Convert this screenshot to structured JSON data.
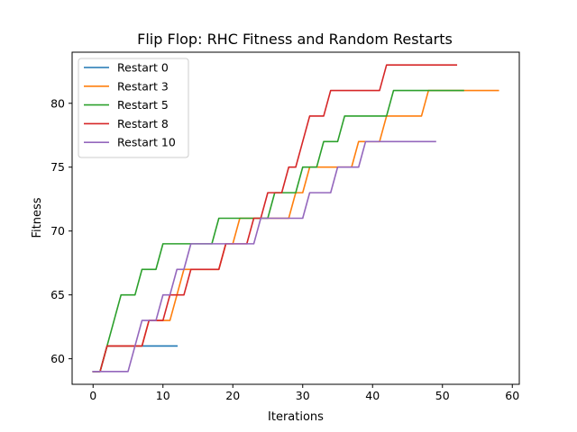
{
  "chart_data": {
    "type": "line",
    "title": "Flip Flop: RHC Fitness and Random Restarts",
    "xlabel": "Iterations",
    "ylabel": "Fitness",
    "xlim": [
      -3,
      61
    ],
    "ylim": [
      58,
      84
    ],
    "xticks": [
      0,
      10,
      20,
      30,
      40,
      50,
      60
    ],
    "yticks": [
      60,
      65,
      70,
      75,
      80
    ],
    "grid": false,
    "legend_position": "top-left",
    "series": [
      {
        "name": "Restart 0",
        "color": "#1f77b4",
        "x": [
          0,
          1,
          2,
          3,
          4,
          5,
          6,
          7,
          8,
          9,
          10,
          11,
          12
        ],
        "y": [
          59,
          59,
          61,
          61,
          61,
          61,
          61,
          61,
          61,
          61,
          61,
          61,
          61
        ]
      },
      {
        "name": "Restart 3",
        "color": "#ff7f0e",
        "x": [
          0,
          1,
          2,
          3,
          4,
          5,
          6,
          7,
          8,
          9,
          10,
          11,
          12,
          13,
          14,
          15,
          16,
          17,
          18,
          19,
          20,
          21,
          22,
          23,
          24,
          25,
          26,
          27,
          28,
          29,
          30,
          31,
          32,
          33,
          34,
          35,
          36,
          37,
          38,
          39,
          40,
          41,
          42,
          43,
          44,
          45,
          46,
          47,
          48,
          49,
          50,
          51,
          52,
          53,
          54,
          55,
          56,
          57,
          58
        ],
        "y": [
          59,
          59,
          61,
          61,
          61,
          61,
          61,
          61,
          63,
          63,
          63,
          63,
          65,
          67,
          67,
          67,
          67,
          67,
          67,
          69,
          69,
          71,
          71,
          71,
          71,
          71,
          71,
          71,
          71,
          73,
          73,
          75,
          75,
          75,
          75,
          75,
          75,
          75,
          77,
          77,
          77,
          77,
          79,
          79,
          79,
          79,
          79,
          79,
          81,
          81,
          81,
          81,
          81,
          81,
          81,
          81,
          81,
          81,
          81
        ]
      },
      {
        "name": "Restart 5",
        "color": "#2ca02c",
        "x": [
          0,
          1,
          2,
          3,
          4,
          5,
          6,
          7,
          8,
          9,
          10,
          11,
          12,
          13,
          14,
          15,
          16,
          17,
          18,
          19,
          20,
          21,
          22,
          23,
          24,
          25,
          26,
          27,
          28,
          29,
          30,
          31,
          32,
          33,
          34,
          35,
          36,
          37,
          38,
          39,
          40,
          41,
          42,
          43,
          44,
          45,
          46,
          47,
          48,
          49,
          50,
          51,
          52,
          53
        ],
        "y": [
          59,
          59,
          61,
          63,
          65,
          65,
          65,
          67,
          67,
          67,
          69,
          69,
          69,
          69,
          69,
          69,
          69,
          69,
          71,
          71,
          71,
          71,
          71,
          71,
          71,
          71,
          73,
          73,
          73,
          73,
          75,
          75,
          75,
          77,
          77,
          77,
          79,
          79,
          79,
          79,
          79,
          79,
          79,
          81,
          81,
          81,
          81,
          81,
          81,
          81,
          81,
          81,
          81,
          81
        ]
      },
      {
        "name": "Restart 8",
        "color": "#d62728",
        "x": [
          0,
          1,
          2,
          3,
          4,
          5,
          6,
          7,
          8,
          9,
          10,
          11,
          12,
          13,
          14,
          15,
          16,
          17,
          18,
          19,
          20,
          21,
          22,
          23,
          24,
          25,
          26,
          27,
          28,
          29,
          30,
          31,
          32,
          33,
          34,
          35,
          36,
          37,
          38,
          39,
          40,
          41,
          42,
          43,
          44,
          45,
          46,
          47,
          48,
          49,
          50,
          51,
          52
        ],
        "y": [
          59,
          59,
          61,
          61,
          61,
          61,
          61,
          61,
          63,
          63,
          63,
          65,
          65,
          65,
          67,
          67,
          67,
          67,
          67,
          69,
          69,
          69,
          69,
          71,
          71,
          73,
          73,
          73,
          75,
          75,
          77,
          79,
          79,
          79,
          81,
          81,
          81,
          81,
          81,
          81,
          81,
          81,
          83,
          83,
          83,
          83,
          83,
          83,
          83,
          83,
          83,
          83,
          83
        ]
      },
      {
        "name": "Restart 10",
        "color": "#9467bd",
        "x": [
          0,
          1,
          2,
          3,
          4,
          5,
          6,
          7,
          8,
          9,
          10,
          11,
          12,
          13,
          14,
          15,
          16,
          17,
          18,
          19,
          20,
          21,
          22,
          23,
          24,
          25,
          26,
          27,
          28,
          29,
          30,
          31,
          32,
          33,
          34,
          35,
          36,
          37,
          38,
          39,
          40,
          41,
          42,
          43,
          44,
          45,
          46,
          47,
          48,
          49
        ],
        "y": [
          59,
          59,
          59,
          59,
          59,
          59,
          61,
          63,
          63,
          63,
          65,
          65,
          67,
          67,
          69,
          69,
          69,
          69,
          69,
          69,
          69,
          69,
          69,
          69,
          71,
          71,
          71,
          71,
          71,
          71,
          71,
          73,
          73,
          73,
          73,
          75,
          75,
          75,
          75,
          77,
          77,
          77,
          77,
          77,
          77,
          77,
          77,
          77,
          77,
          77
        ]
      }
    ]
  }
}
